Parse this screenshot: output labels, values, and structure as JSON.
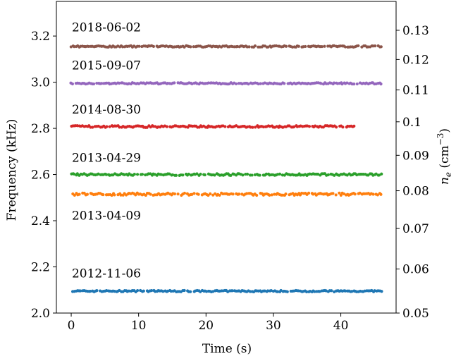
{
  "chart_data": {
    "type": "scatter",
    "xlabel": "Time (s)",
    "ylabel": "Frequency (kHz)",
    "ylabel_right_main": "n",
    "ylabel_right_sub": "e",
    "ylabel_right_unit_open": " (cm",
    "ylabel_right_unit_sup": "−3",
    "ylabel_right_unit_close": ")",
    "xlim": [
      -2.2,
      48.2
    ],
    "ylim": [
      2.0,
      3.35
    ],
    "xticks": [
      0,
      10,
      20,
      30,
      40
    ],
    "xtick_labels": [
      "0",
      "10",
      "20",
      "30",
      "40"
    ],
    "yticks": [
      2.0,
      2.2,
      2.4,
      2.6,
      2.8,
      3.0,
      3.2
    ],
    "ytick_labels": [
      "2.0",
      "2.2",
      "2.4",
      "2.6",
      "2.8",
      "3.0",
      "3.2"
    ],
    "right_axis": {
      "scale": "sqrt",
      "ticks": [
        0.05,
        0.06,
        0.07,
        0.08,
        0.09,
        0.1,
        0.11,
        0.12,
        0.13
      ],
      "tick_labels": [
        "0.05",
        "0.06",
        "0.07",
        "0.08",
        "0.09",
        "0.1",
        "0.11",
        "0.12",
        "0.13"
      ]
    },
    "grid": false,
    "series": [
      {
        "name": "2012-11-06",
        "color": "#1f77b4",
        "y": 2.095,
        "x_start": 0.0,
        "x_end": 46.0,
        "scatter": 0.003
      },
      {
        "name": "2013-04-09",
        "color": "#ff7f0e",
        "y": 2.515,
        "x_start": 0.0,
        "x_end": 46.0,
        "scatter": 0.005
      },
      {
        "name": "2013-04-29",
        "color": "#2ca02c",
        "y": 2.6,
        "x_start": 0.0,
        "x_end": 46.0,
        "scatter": 0.004
      },
      {
        "name": "2014-08-30",
        "color": "#d62728",
        "y": 2.808,
        "x_start": 0.0,
        "x_end": 42.0,
        "scatter": 0.004
      },
      {
        "name": "2015-09-07",
        "color": "#9467bd",
        "y": 2.995,
        "x_start": 0.0,
        "x_end": 46.0,
        "scatter": 0.003
      },
      {
        "name": "2018-06-02",
        "color": "#8c564b",
        "y": 3.155,
        "x_start": 0.0,
        "x_end": 46.0,
        "scatter": 0.003
      }
    ],
    "annotations": [
      {
        "text": "2018-06-02",
        "x": 0.1,
        "y": 3.22
      },
      {
        "text": "2015-09-07",
        "x": 0.1,
        "y": 3.055
      },
      {
        "text": "2014-08-30",
        "x": 0.1,
        "y": 2.865
      },
      {
        "text": "2013-04-29",
        "x": 0.1,
        "y": 2.655
      },
      {
        "text": "2013-04-09",
        "x": 0.1,
        "y": 2.405
      },
      {
        "text": "2012-11-06",
        "x": 0.1,
        "y": 2.155
      }
    ]
  }
}
